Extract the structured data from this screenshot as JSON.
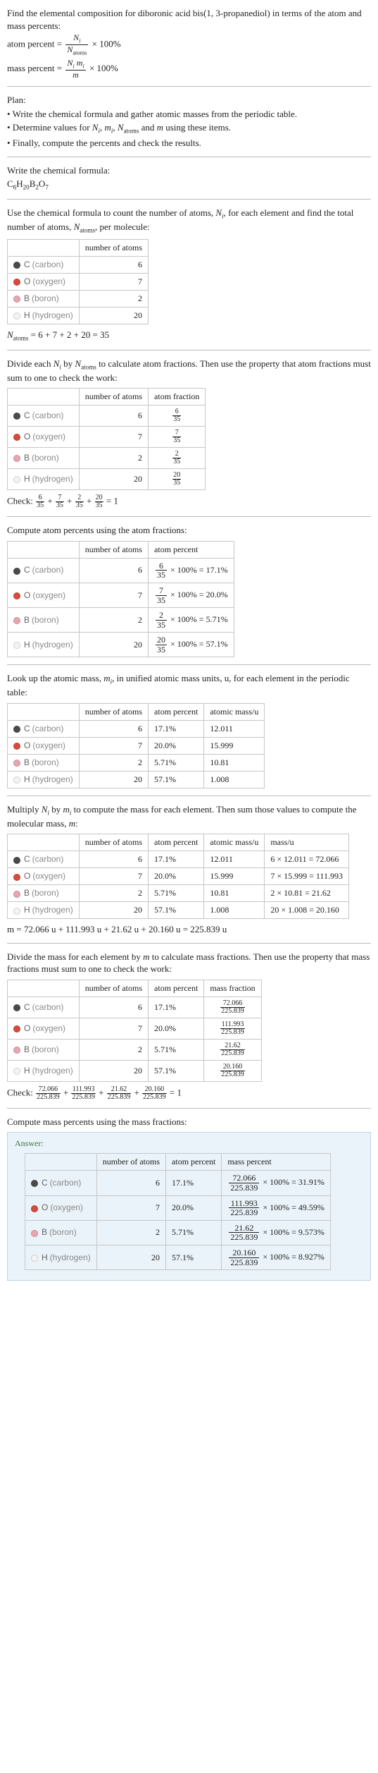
{
  "intro": {
    "prompt": "Find the elemental composition for diboronic acid bis(1, 3-propanediol) in terms of the atom and mass percents:",
    "atom_label": "atom percent =",
    "atom_num": "N_i",
    "atom_den": "N_atoms",
    "mass_label": "mass percent =",
    "mass_num": "N_i m_i",
    "mass_den": "m",
    "times100": "× 100%"
  },
  "plan": {
    "title": "Plan:",
    "b1": "• Write the chemical formula and gather atomic masses from the periodic table.",
    "b2_a": "• Determine values for ",
    "b2_b": " using these items.",
    "b2_vars": "N_i, m_i, N_atoms and m",
    "b3": "• Finally, compute the percents and check the results."
  },
  "step_formula": {
    "text": "Write the chemical formula:",
    "formula_parts": [
      "C",
      "6",
      "H",
      "20",
      "B",
      "2",
      "O",
      "7"
    ]
  },
  "step_count": {
    "text_a": "Use the chemical formula to count the number of atoms, ",
    "Ni": "N_i",
    "text_b": ", for each element and find the total number of atoms, ",
    "Na": "N_atoms",
    "text_c": ", per molecule:"
  },
  "elements": [
    {
      "swatch": "#4a4a4a",
      "sym": "C",
      "name": "(carbon)",
      "atoms": "6"
    },
    {
      "swatch": "#d84a3a",
      "sym": "O",
      "name": "(oxygen)",
      "atoms": "7"
    },
    {
      "swatch": "#e9a6b0",
      "sym": "B",
      "name": "(boron)",
      "atoms": "2"
    },
    {
      "swatch": "#f4f4f4",
      "sym": "H",
      "name": "(hydrogen)",
      "atoms": "20"
    }
  ],
  "headers": {
    "num_atoms": "number of atoms",
    "atom_frac": "atom fraction",
    "atom_pct": "atom percent",
    "atomic_mass": "atomic mass/u",
    "mass_u": "mass/u",
    "mass_frac": "mass fraction",
    "mass_pct": "mass percent"
  },
  "natoms_line": "N_atoms = 6 + 7 + 2 + 20 = 35",
  "step_frac": {
    "text": "Divide each N_i by N_atoms to calculate atom fractions. Then use the property that atom fractions must sum to one to check the work:"
  },
  "fractions": [
    {
      "num": "6",
      "den": "35"
    },
    {
      "num": "7",
      "den": "35"
    },
    {
      "num": "2",
      "den": "35"
    },
    {
      "num": "20",
      "den": "35"
    }
  ],
  "check1": {
    "label": "Check: ",
    "tail": " = 1"
  },
  "step_atompct": {
    "text": "Compute atom percents using the atom fractions:"
  },
  "atom_pcts": [
    {
      "num": "6",
      "den": "35",
      "res": "× 100% = 17.1%"
    },
    {
      "num": "7",
      "den": "35",
      "res": "× 100% = 20.0%"
    },
    {
      "num": "2",
      "den": "35",
      "res": "× 100% = 5.71%"
    },
    {
      "num": "20",
      "den": "35",
      "res": "× 100% = 57.1%"
    }
  ],
  "step_mass": {
    "text": "Look up the atomic mass, m_i, in unified atomic mass units, u, for each element in the periodic table:"
  },
  "masses": [
    {
      "pct": "17.1%",
      "amu": "12.011"
    },
    {
      "pct": "20.0%",
      "amu": "15.999"
    },
    {
      "pct": "5.71%",
      "amu": "10.81"
    },
    {
      "pct": "57.1%",
      "amu": "1.008"
    }
  ],
  "step_mult": {
    "text": "Multiply N_i by m_i to compute the mass for each element. Then sum those values to compute the molecular mass, m:"
  },
  "mults": [
    {
      "expr": "6 × 12.011 = 72.066"
    },
    {
      "expr": "7 × 15.999 = 111.993"
    },
    {
      "expr": "2 × 10.81 = 21.62"
    },
    {
      "expr": "20 × 1.008 = 20.160"
    }
  ],
  "m_line": "m = 72.066 u + 111.993 u + 21.62 u + 20.160 u = 225.839 u",
  "step_massfrac": {
    "text": "Divide the mass for each element by m to calculate mass fractions. Then use the property that mass fractions must sum to one to check the work:"
  },
  "massfracs": [
    {
      "num": "72.066",
      "den": "225.839"
    },
    {
      "num": "111.993",
      "den": "225.839"
    },
    {
      "num": "21.62",
      "den": "225.839"
    },
    {
      "num": "20.160",
      "den": "225.839"
    }
  ],
  "step_masspct": {
    "text": "Compute mass percents using the mass fractions:"
  },
  "answer": {
    "label": "Answer:"
  },
  "masspcts": [
    {
      "num": "72.066",
      "den": "225.839",
      "res": "× 100% = 31.91%"
    },
    {
      "num": "111.993",
      "den": "225.839",
      "res": "× 100% = 49.59%"
    },
    {
      "num": "21.62",
      "den": "225.839",
      "res": "× 100% = 9.573%"
    },
    {
      "num": "20.160",
      "den": "225.839",
      "res": "× 100% = 8.927%"
    }
  ],
  "colors": {
    "sep": "#bcbcbc",
    "border": "#c7c7c7",
    "answer_bg": "#eaf3f9",
    "answer_border": "#bcd6e6"
  }
}
